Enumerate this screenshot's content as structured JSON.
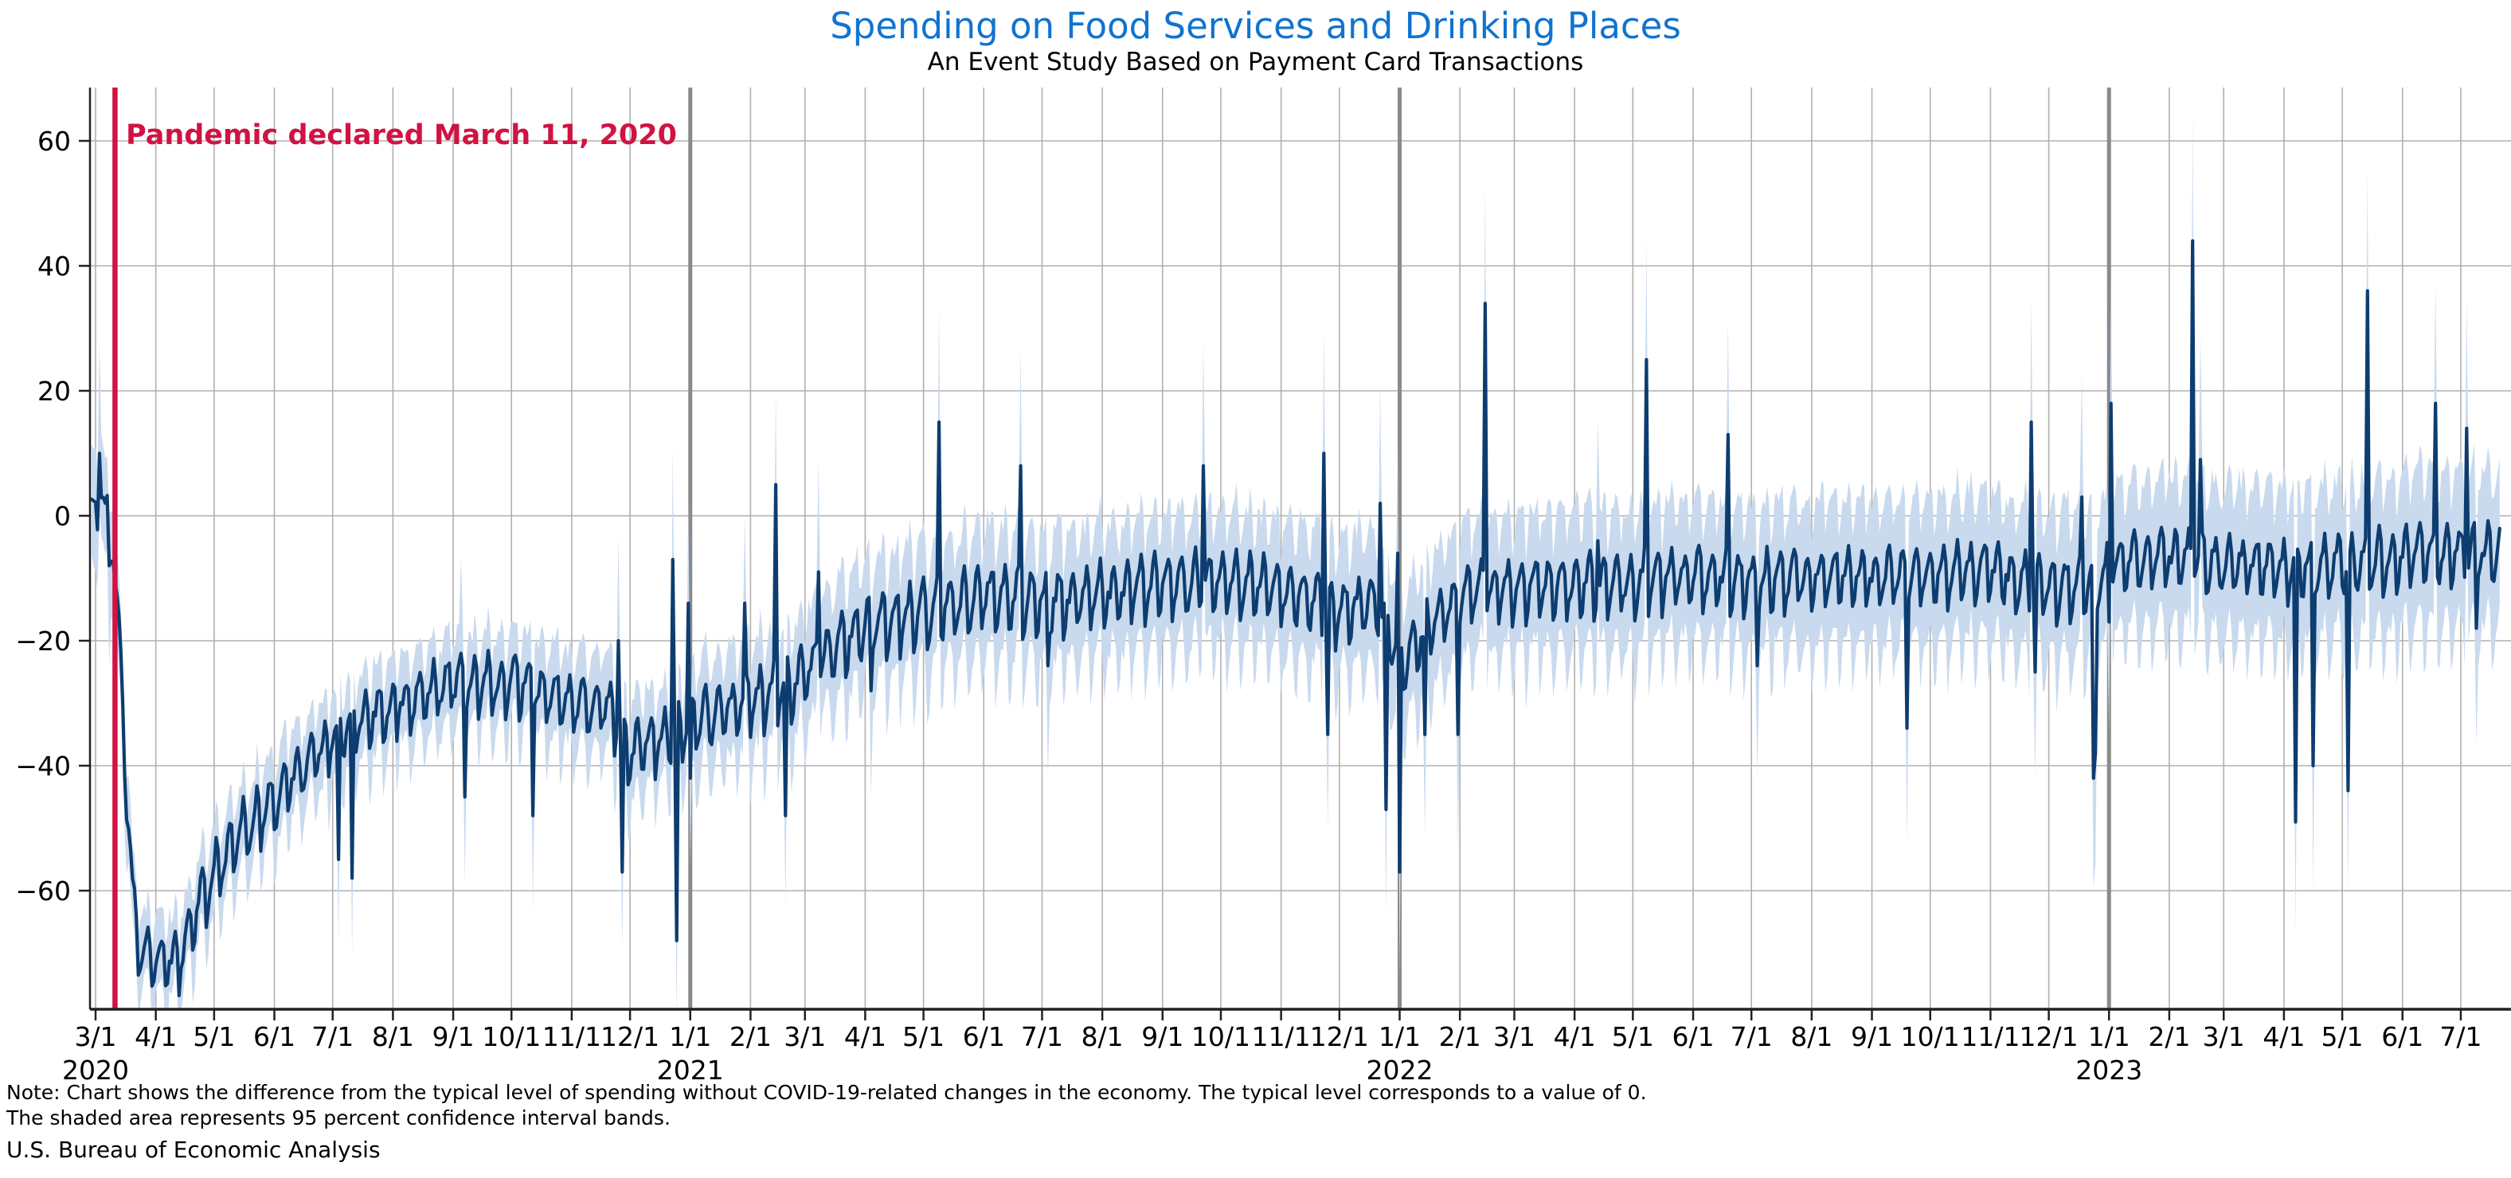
{
  "title": "Spending on Food Services and Drinking Places",
  "subtitle": "An Event Study Based on Payment Card Transactions",
  "annotation": {
    "text": "Pandemic declared March 11, 2020",
    "date": "2020-03-11"
  },
  "notes": {
    "line1": "Note: Chart shows the difference from the typical level of spending without COVID-19-related changes in the economy. The typical level corresponds to a value of 0.",
    "line2": "The shaded area represents 95 percent confidence interval bands."
  },
  "source": "U.S. Bureau of Economic Analysis",
  "colors": {
    "title": "#1173cf",
    "annotation": "#d01342",
    "event_line": "#d01342",
    "year_line": "#8a8a8a",
    "grid": "#b0b0b0",
    "axis": "#212121",
    "line": "#0d3d70",
    "band": "#c9daee",
    "tick_text": "#000000"
  },
  "chart_data": {
    "type": "line",
    "series_name": "Difference from typical level of spending",
    "band_name": "95 percent confidence interval bands",
    "frequency": "daily",
    "x_start": "2020-02-28",
    "x_end": "2023-07-21",
    "ylim": [
      -79,
      68.5
    ],
    "grid": true,
    "legend": "none",
    "yticks": [
      {
        "value": 60,
        "label": "60"
      },
      {
        "value": 40,
        "label": "40"
      },
      {
        "value": 20,
        "label": "20"
      },
      {
        "value": 0,
        "label": "0"
      },
      {
        "value": -20,
        "label": "−20"
      },
      {
        "value": -40,
        "label": "−40"
      },
      {
        "value": -60,
        "label": "−60"
      }
    ],
    "xticks": [
      {
        "date": "2020-03-01",
        "label": "3/1"
      },
      {
        "date": "2020-04-01",
        "label": "4/1"
      },
      {
        "date": "2020-05-01",
        "label": "5/1"
      },
      {
        "date": "2020-06-01",
        "label": "6/1"
      },
      {
        "date": "2020-07-01",
        "label": "7/1"
      },
      {
        "date": "2020-08-01",
        "label": "8/1"
      },
      {
        "date": "2020-09-01",
        "label": "9/1"
      },
      {
        "date": "2020-10-01",
        "label": "10/1"
      },
      {
        "date": "2020-11-01",
        "label": "11/1"
      },
      {
        "date": "2020-12-01",
        "label": "12/1"
      },
      {
        "date": "2021-01-01",
        "label": "1/1"
      },
      {
        "date": "2021-02-01",
        "label": "2/1"
      },
      {
        "date": "2021-03-01",
        "label": "3/1"
      },
      {
        "date": "2021-04-01",
        "label": "4/1"
      },
      {
        "date": "2021-05-01",
        "label": "5/1"
      },
      {
        "date": "2021-06-01",
        "label": "6/1"
      },
      {
        "date": "2021-07-01",
        "label": "7/1"
      },
      {
        "date": "2021-08-01",
        "label": "8/1"
      },
      {
        "date": "2021-09-01",
        "label": "9/1"
      },
      {
        "date": "2021-10-01",
        "label": "10/1"
      },
      {
        "date": "2021-11-01",
        "label": "11/1"
      },
      {
        "date": "2021-12-01",
        "label": "12/1"
      },
      {
        "date": "2022-01-01",
        "label": "1/1"
      },
      {
        "date": "2022-02-01",
        "label": "2/1"
      },
      {
        "date": "2022-03-01",
        "label": "3/1"
      },
      {
        "date": "2022-04-01",
        "label": "4/1"
      },
      {
        "date": "2022-05-01",
        "label": "5/1"
      },
      {
        "date": "2022-06-01",
        "label": "6/1"
      },
      {
        "date": "2022-07-01",
        "label": "7/1"
      },
      {
        "date": "2022-08-01",
        "label": "8/1"
      },
      {
        "date": "2022-09-01",
        "label": "9/1"
      },
      {
        "date": "2022-10-01",
        "label": "10/1"
      },
      {
        "date": "2022-11-01",
        "label": "11/1"
      },
      {
        "date": "2022-12-01",
        "label": "12/1"
      },
      {
        "date": "2023-01-01",
        "label": "1/1"
      },
      {
        "date": "2023-02-01",
        "label": "2/1"
      },
      {
        "date": "2023-03-01",
        "label": "3/1"
      },
      {
        "date": "2023-04-01",
        "label": "4/1"
      },
      {
        "date": "2023-05-01",
        "label": "5/1"
      },
      {
        "date": "2023-06-01",
        "label": "6/1"
      },
      {
        "date": "2023-07-01",
        "label": "7/1"
      }
    ],
    "year_labels": [
      {
        "date": "2020-03-01",
        "label": "2020"
      },
      {
        "date": "2021-01-01",
        "label": "2021"
      },
      {
        "date": "2022-01-01",
        "label": "2022"
      },
      {
        "date": "2023-01-01",
        "label": "2023"
      }
    ],
    "event_line": {
      "date": "2020-03-11",
      "label": "Pandemic declared March 11, 2020"
    },
    "year_lines": [
      "2021-01-01",
      "2022-01-01",
      "2023-01-01"
    ],
    "trend_anchors": [
      {
        "date": "2020-02-28",
        "value": 0
      },
      {
        "date": "2020-03-04",
        "value": 3
      },
      {
        "date": "2020-03-07",
        "value": -1
      },
      {
        "date": "2020-03-10",
        "value": -5
      },
      {
        "date": "2020-03-13",
        "value": -18
      },
      {
        "date": "2020-03-17",
        "value": -45
      },
      {
        "date": "2020-03-20",
        "value": -60
      },
      {
        "date": "2020-03-22",
        "value": -68
      },
      {
        "date": "2020-03-26",
        "value": -71
      },
      {
        "date": "2020-04-12",
        "value": -72
      },
      {
        "date": "2020-04-20",
        "value": -65
      },
      {
        "date": "2020-05-01",
        "value": -58
      },
      {
        "date": "2020-05-15",
        "value": -51
      },
      {
        "date": "2020-06-01",
        "value": -46
      },
      {
        "date": "2020-06-15",
        "value": -41
      },
      {
        "date": "2020-07-01",
        "value": -36
      },
      {
        "date": "2020-07-15",
        "value": -33
      },
      {
        "date": "2020-08-01",
        "value": -31
      },
      {
        "date": "2020-09-01",
        "value": -27
      },
      {
        "date": "2020-10-01",
        "value": -27
      },
      {
        "date": "2020-10-20",
        "value": -29
      },
      {
        "date": "2020-11-01",
        "value": -30
      },
      {
        "date": "2020-11-20",
        "value": -31
      },
      {
        "date": "2020-12-01",
        "value": -38
      },
      {
        "date": "2020-12-28",
        "value": -35
      },
      {
        "date": "2021-01-05",
        "value": -33
      },
      {
        "date": "2021-02-01",
        "value": -30
      },
      {
        "date": "2021-02-20",
        "value": -28
      },
      {
        "date": "2021-03-01",
        "value": -26
      },
      {
        "date": "2021-03-15",
        "value": -22
      },
      {
        "date": "2021-04-01",
        "value": -18
      },
      {
        "date": "2021-05-01",
        "value": -16
      },
      {
        "date": "2021-06-01",
        "value": -13
      },
      {
        "date": "2021-07-01",
        "value": -14
      },
      {
        "date": "2021-08-01",
        "value": -13
      },
      {
        "date": "2021-09-01",
        "value": -11
      },
      {
        "date": "2021-10-01",
        "value": -11
      },
      {
        "date": "2021-11-01",
        "value": -12
      },
      {
        "date": "2021-12-01",
        "value": -16
      },
      {
        "date": "2021-12-20",
        "value": -14
      },
      {
        "date": "2022-01-02",
        "value": -24
      },
      {
        "date": "2022-01-20",
        "value": -17
      },
      {
        "date": "2022-02-05",
        "value": -13
      },
      {
        "date": "2022-03-01",
        "value": -12
      },
      {
        "date": "2022-04-01",
        "value": -11
      },
      {
        "date": "2022-05-01",
        "value": -11
      },
      {
        "date": "2022-06-01",
        "value": -10
      },
      {
        "date": "2022-07-01",
        "value": -11
      },
      {
        "date": "2022-08-01",
        "value": -10
      },
      {
        "date": "2022-09-01",
        "value": -10
      },
      {
        "date": "2022-10-01",
        "value": -10
      },
      {
        "date": "2022-11-01",
        "value": -9
      },
      {
        "date": "2022-12-01",
        "value": -12
      },
      {
        "date": "2022-12-27",
        "value": -11
      },
      {
        "date": "2023-01-05",
        "value": -8
      },
      {
        "date": "2023-02-01",
        "value": -7
      },
      {
        "date": "2023-03-01",
        "value": -8
      },
      {
        "date": "2023-04-01",
        "value": -9
      },
      {
        "date": "2023-05-01",
        "value": -8
      },
      {
        "date": "2023-06-01",
        "value": -7
      },
      {
        "date": "2023-07-21",
        "value": -6
      }
    ],
    "weekly_pattern": [
      0.6,
      -1.0,
      -0.7,
      -0.15,
      0.2,
      0.7,
      1.0
    ],
    "weekly_amplitude_anchors": [
      {
        "date": "2020-02-28",
        "value": 3
      },
      {
        "date": "2020-03-25",
        "value": 4.5
      },
      {
        "date": "2020-05-01",
        "value": 5
      },
      {
        "date": "2020-07-01",
        "value": 4
      },
      {
        "date": "2021-01-01",
        "value": 4.5
      },
      {
        "date": "2021-06-01",
        "value": 5
      },
      {
        "date": "2022-01-01",
        "value": 4.5
      },
      {
        "date": "2023-07-21",
        "value": 4.5
      }
    ],
    "band_halfwidth_anchors": [
      {
        "date": "2020-02-28",
        "value": 8
      },
      {
        "date": "2020-03-25",
        "value": 5
      },
      {
        "date": "2020-06-01",
        "value": 5.5
      },
      {
        "date": "2020-10-01",
        "value": 6
      },
      {
        "date": "2021-01-01",
        "value": 7
      },
      {
        "date": "2021-04-01",
        "value": 8.5
      },
      {
        "date": "2021-08-01",
        "value": 9
      },
      {
        "date": "2022-01-01",
        "value": 9.5
      },
      {
        "date": "2022-07-01",
        "value": 10
      },
      {
        "date": "2023-01-01",
        "value": 10.5
      },
      {
        "date": "2023-07-21",
        "value": 11.5
      }
    ],
    "noise_amplitude": 1.4,
    "band_edge_jitter": 2.5,
    "spike_band_extra_top": 8,
    "spike_band_extra_bottom": 6,
    "spikes": [
      {
        "date": "2020-03-03",
        "value": 10
      },
      {
        "date": "2020-03-08",
        "value": -8
      },
      {
        "date": "2020-07-04",
        "value": -55
      },
      {
        "date": "2020-07-11",
        "value": -58
      },
      {
        "date": "2020-09-05",
        "value": -22
      },
      {
        "date": "2020-09-07",
        "value": -45
      },
      {
        "date": "2020-10-12",
        "value": -48
      },
      {
        "date": "2020-11-25",
        "value": -20
      },
      {
        "date": "2020-11-27",
        "value": -57
      },
      {
        "date": "2020-12-23",
        "value": -7
      },
      {
        "date": "2020-12-25",
        "value": -68
      },
      {
        "date": "2020-12-31",
        "value": -14
      },
      {
        "date": "2021-01-01",
        "value": -42
      },
      {
        "date": "2021-01-29",
        "value": -14
      },
      {
        "date": "2021-02-14",
        "value": 5
      },
      {
        "date": "2021-02-19",
        "value": -48
      },
      {
        "date": "2021-03-08",
        "value": -9
      },
      {
        "date": "2021-04-04",
        "value": -28
      },
      {
        "date": "2021-05-09",
        "value": 15
      },
      {
        "date": "2021-06-20",
        "value": 8
      },
      {
        "date": "2021-07-04",
        "value": -24
      },
      {
        "date": "2021-09-22",
        "value": 8
      },
      {
        "date": "2021-11-23",
        "value": 10
      },
      {
        "date": "2021-11-25",
        "value": -35
      },
      {
        "date": "2021-12-22",
        "value": 2
      },
      {
        "date": "2021-12-25",
        "value": -47
      },
      {
        "date": "2021-12-31",
        "value": -6
      },
      {
        "date": "2022-01-01",
        "value": -57
      },
      {
        "date": "2022-01-14",
        "value": -35
      },
      {
        "date": "2022-01-31",
        "value": -35
      },
      {
        "date": "2022-02-14",
        "value": 34
      },
      {
        "date": "2022-04-13",
        "value": -4
      },
      {
        "date": "2022-05-08",
        "value": 25
      },
      {
        "date": "2022-06-19",
        "value": 13
      },
      {
        "date": "2022-07-04",
        "value": -24
      },
      {
        "date": "2022-09-19",
        "value": -34
      },
      {
        "date": "2022-11-22",
        "value": 15
      },
      {
        "date": "2022-11-24",
        "value": -25
      },
      {
        "date": "2022-12-18",
        "value": 3
      },
      {
        "date": "2022-12-24",
        "value": -42
      },
      {
        "date": "2022-12-25",
        "value": -38
      },
      {
        "date": "2023-01-01",
        "value": -17
      },
      {
        "date": "2023-01-02",
        "value": 18
      },
      {
        "date": "2023-02-13",
        "value": 44
      },
      {
        "date": "2023-02-17",
        "value": 9
      },
      {
        "date": "2023-04-07",
        "value": -49
      },
      {
        "date": "2023-04-16",
        "value": -40
      },
      {
        "date": "2023-05-04",
        "value": -44
      },
      {
        "date": "2023-05-14",
        "value": 36
      },
      {
        "date": "2023-06-18",
        "value": 18
      },
      {
        "date": "2023-07-04",
        "value": 14
      },
      {
        "date": "2023-07-09",
        "value": -18
      }
    ]
  }
}
